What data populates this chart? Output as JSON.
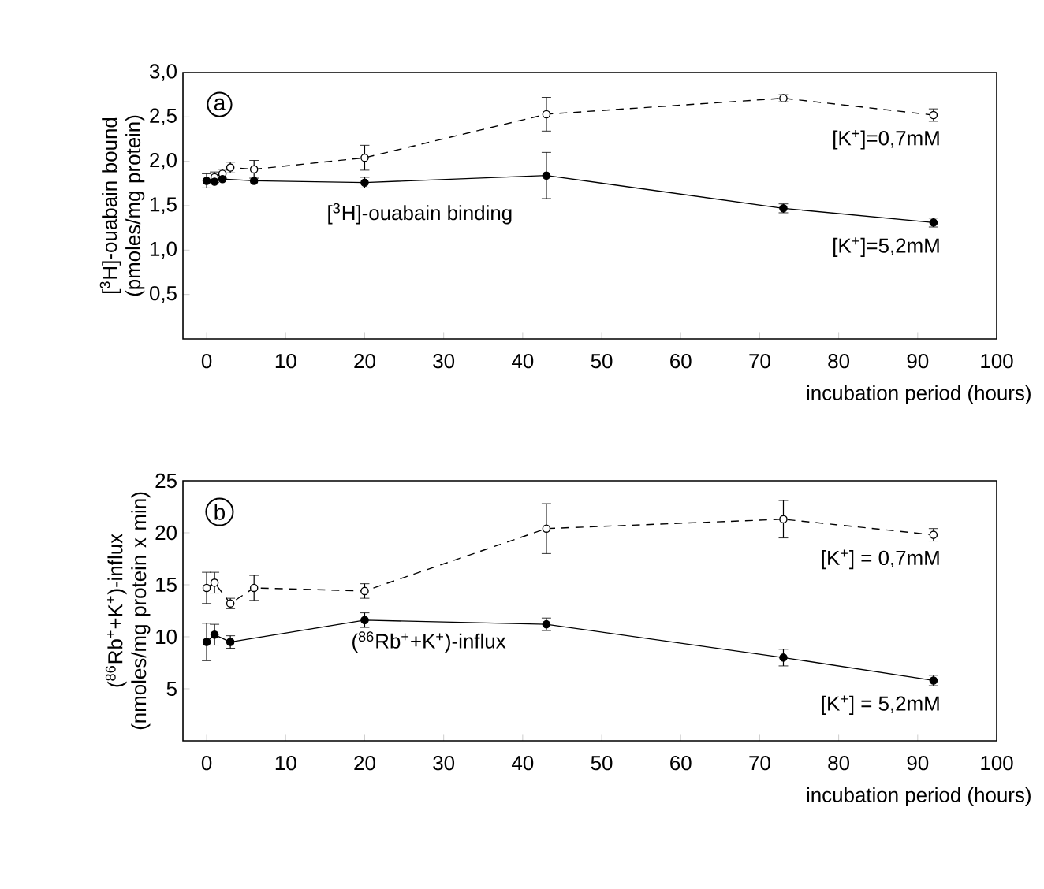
{
  "chart_data": [
    {
      "type": "line",
      "xlabel": "incubation period (hours)",
      "ylabel": "[$^{3}$H]-ouabain bound (pmoles/mg protein)",
      "xlim": [
        -3,
        100
      ],
      "ylim": [
        0,
        3
      ],
      "xticks": [
        0,
        10,
        20,
        30,
        40,
        50,
        60,
        70,
        80,
        90,
        100
      ],
      "yticks": [
        {
          "value": 0.5,
          "label": "0,5"
        },
        {
          "value": 1.0,
          "label": "1,0"
        },
        {
          "value": 1.5,
          "label": "1,5"
        },
        {
          "value": 2.0,
          "label": "2,0"
        },
        {
          "value": 2.5,
          "label": "2,5"
        },
        {
          "value": 3.0,
          "label": "3,0"
        }
      ],
      "annotations": [
        "a",
        "[$^{3}$H]-ouabain binding"
      ],
      "series": [
        {
          "name": "[K$^{+}$]=0,7mM",
          "color": "#000000",
          "marker": "circle",
          "line_style": "dashed",
          "x": [
            1,
            2,
            3,
            6,
            20,
            43,
            73,
            92
          ],
          "values": [
            1.82,
            1.86,
            1.93,
            1.91,
            2.04,
            2.53,
            2.71,
            2.52
          ],
          "errors": [
            0.06,
            0.05,
            0.06,
            0.1,
            0.14,
            0.19,
            0.04,
            0.07
          ]
        },
        {
          "name": "[K$^{+}$]=5,2mM",
          "color": "#000000",
          "marker": "circle",
          "line_style": "solid",
          "x": [
            0,
            1,
            2,
            6,
            20,
            43,
            73,
            92
          ],
          "values": [
            1.78,
            1.77,
            1.8,
            1.78,
            1.76,
            1.84,
            1.47,
            1.31
          ],
          "errors": [
            0.08,
            null,
            null,
            null,
            0.06,
            0.26,
            0.05,
            0.05
          ]
        }
      ]
    },
    {
      "type": "line",
      "xlabel": "incubation period (hours)",
      "ylabel": "($^{86}$Rb$^{+}$+K$^{+}$)-influx (nmoles/mg protein x min)",
      "xlim": [
        -3,
        100
      ],
      "ylim": [
        0,
        25
      ],
      "xticks": [
        0,
        10,
        20,
        30,
        40,
        50,
        60,
        70,
        80,
        90,
        100
      ],
      "yticks": [
        5,
        10,
        15,
        20,
        25
      ],
      "annotations": [
        "b",
        "($^{86}$Rb$^{+}$+K$^{+}$)-influx"
      ],
      "series": [
        {
          "name": "[K$^{+}$] = 0,7mM",
          "color": "#000000",
          "marker": "circle",
          "line_style": "dashed",
          "x": [
            0,
            1,
            3,
            6,
            20,
            43,
            73,
            92
          ],
          "values": [
            14.7,
            15.2,
            13.2,
            14.7,
            14.4,
            20.4,
            21.3,
            19.8
          ],
          "errors": [
            1.5,
            1.0,
            0.5,
            1.2,
            0.7,
            2.4,
            1.8,
            0.6
          ]
        },
        {
          "name": "[K$^{+}$] = 5,2mM",
          "color": "#000000",
          "marker": "circle",
          "line_style": "solid",
          "x": [
            0,
            1,
            3,
            20,
            43,
            73,
            92
          ],
          "values": [
            9.5,
            10.2,
            9.5,
            11.6,
            11.2,
            8.0,
            5.8
          ],
          "errors": [
            1.8,
            1.0,
            0.6,
            0.7,
            0.6,
            0.8,
            0.5
          ]
        }
      ]
    }
  ]
}
